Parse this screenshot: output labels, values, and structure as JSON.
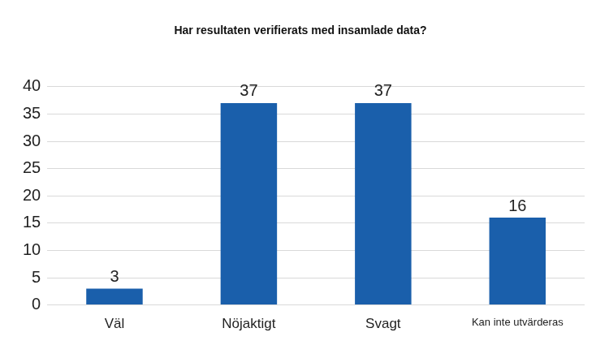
{
  "chart_data": {
    "type": "bar",
    "title": "Har resultaten verifierats med insamlade data?",
    "categories": [
      "Väl",
      "Nöjaktigt",
      "Svagt",
      "Kan inte utvärderas"
    ],
    "values": [
      3,
      37,
      37,
      16
    ],
    "color": "#1a5fab",
    "ylim": [
      0,
      40
    ],
    "yticks": [
      0,
      5,
      10,
      15,
      20,
      25,
      30,
      35,
      40
    ],
    "grid": true,
    "data_labels": true
  }
}
